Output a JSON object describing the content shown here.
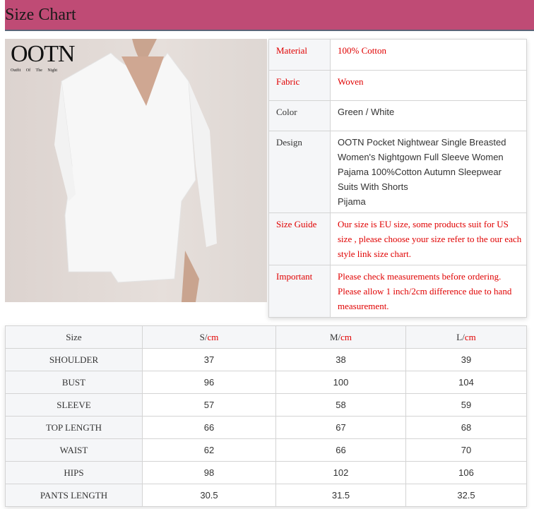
{
  "header": {
    "title": "Size Chart",
    "color": "#bf4b75"
  },
  "logo": {
    "brand": "OOTN",
    "tagline": "Outfit Of The Night"
  },
  "info": [
    {
      "key": "Material",
      "value": "100% Cotton",
      "color": "red"
    },
    {
      "key": "Fabric",
      "value": "Woven",
      "color": "red"
    },
    {
      "key": "Color",
      "value": "Green / White",
      "color": "dark"
    },
    {
      "key": "Design",
      "value": "OOTN Pocket Nightwear Single Breasted Women's Nightgown Full Sleeve Women Pajama 100%Cotton Autumn Sleepwear Suits With Shorts",
      "value2": "Pijama",
      "color": "dark"
    },
    {
      "key": "Size Guide",
      "value": "Our size is EU size, some products suit for US size , please choose your size refer to the our each style link size chart.",
      "color": "red"
    },
    {
      "key": "Important",
      "value": "Please check measurements before ordering. Please allow 1 inch/2cm difference due to hand measurement.",
      "color": "red"
    }
  ],
  "size_table": {
    "header": [
      "Size",
      "S/",
      "M/",
      "L/"
    ],
    "unit": "cm",
    "rows": [
      [
        "SHOULDER",
        "37",
        "38",
        "39"
      ],
      [
        "BUST",
        "96",
        "100",
        "104"
      ],
      [
        "SLEEVE",
        "57",
        "58",
        "59"
      ],
      [
        "TOP LENGTH",
        "66",
        "67",
        "68"
      ],
      [
        "WAIST",
        "62",
        "66",
        "70"
      ],
      [
        "HIPS",
        "98",
        "102",
        "106"
      ],
      [
        "PANTS LENGTH",
        "30.5",
        "31.5",
        "32.5"
      ]
    ]
  }
}
